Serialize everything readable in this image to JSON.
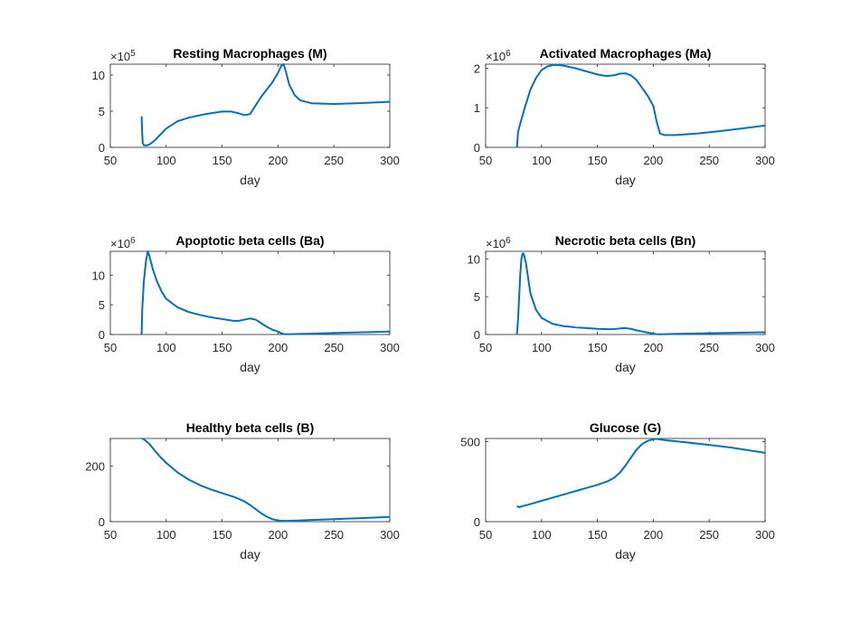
{
  "figure": {
    "background": "#ffffff",
    "line_color": "#0072BD",
    "axis_color": "#262626"
  },
  "chart_data": [
    {
      "type": "line",
      "title": "Resting Macrophages (M)",
      "xlabel": "day",
      "xlim": [
        50,
        300
      ],
      "xticks": [
        "50",
        "100",
        "150",
        "200",
        "250",
        "300"
      ],
      "ylim": [
        0,
        11.5
      ],
      "yticks": [
        "0",
        "5",
        "10"
      ],
      "multiplier": {
        "base": "×10",
        "exp": "5"
      },
      "series": [
        {
          "x": [
            78,
            78.5,
            79,
            80,
            82,
            85,
            90,
            100,
            110,
            120,
            135,
            150,
            158,
            165,
            170,
            175,
            180,
            185,
            190,
            195,
            200,
            203,
            205,
            207,
            210,
            215,
            220,
            230,
            250,
            270,
            300
          ],
          "y": [
            4.3,
            2.0,
            0.6,
            0.3,
            0.25,
            0.4,
            1.0,
            2.6,
            3.6,
            4.1,
            4.6,
            4.95,
            4.95,
            4.7,
            4.45,
            4.6,
            5.8,
            7.0,
            8.0,
            9.0,
            10.3,
            11.3,
            11.5,
            10.5,
            8.7,
            7.2,
            6.5,
            6.1,
            6.0,
            6.1,
            6.3
          ]
        }
      ]
    },
    {
      "type": "line",
      "title": "Activated Macrophages (Ma)",
      "xlabel": "day",
      "xlim": [
        50,
        300
      ],
      "xticks": [
        "50",
        "100",
        "150",
        "200",
        "250",
        "300"
      ],
      "ylim": [
        0,
        2.1
      ],
      "yticks": [
        "0",
        "1",
        "2"
      ],
      "multiplier": {
        "base": "×10",
        "exp": "6"
      },
      "series": [
        {
          "x": [
            78,
            79,
            80,
            82,
            85,
            90,
            95,
            100,
            105,
            110,
            115,
            120,
            130,
            140,
            150,
            158,
            165,
            170,
            175,
            180,
            185,
            190,
            195,
            200,
            203,
            206,
            210,
            220,
            240,
            260,
            280,
            300
          ],
          "y": [
            0.0,
            0.38,
            0.5,
            0.7,
            1.0,
            1.45,
            1.75,
            1.95,
            2.04,
            2.08,
            2.08,
            2.06,
            2.0,
            1.92,
            1.84,
            1.8,
            1.82,
            1.86,
            1.87,
            1.82,
            1.7,
            1.5,
            1.3,
            1.05,
            0.65,
            0.35,
            0.31,
            0.31,
            0.35,
            0.41,
            0.48,
            0.55
          ]
        }
      ]
    },
    {
      "type": "line",
      "title": "Apoptotic beta cells (Ba)",
      "xlabel": "day",
      "xlim": [
        50,
        300
      ],
      "xticks": [
        "50",
        "100",
        "150",
        "200",
        "250",
        "300"
      ],
      "ylim": [
        0,
        14
      ],
      "yticks": [
        "0",
        "5",
        "10"
      ],
      "multiplier": {
        "base": "×10",
        "exp": "6"
      },
      "series": [
        {
          "x": [
            78,
            78.5,
            80,
            82,
            83.5,
            85,
            88,
            92,
            96,
            100,
            110,
            120,
            130,
            140,
            150,
            160,
            165,
            170,
            175,
            180,
            185,
            190,
            195,
            200,
            203,
            206,
            210,
            230,
            260,
            300
          ],
          "y": [
            0.0,
            4.0,
            9.0,
            12.5,
            14.0,
            13.2,
            11.0,
            8.8,
            7.2,
            6.0,
            4.6,
            3.8,
            3.3,
            2.9,
            2.6,
            2.3,
            2.3,
            2.5,
            2.7,
            2.5,
            1.9,
            1.3,
            0.8,
            0.5,
            0.2,
            0.05,
            0.05,
            0.15,
            0.3,
            0.5
          ]
        }
      ]
    },
    {
      "type": "line",
      "title": "Necrotic beta cells (Bn)",
      "xlabel": "day",
      "xlim": [
        50,
        300
      ],
      "xticks": [
        "50",
        "100",
        "150",
        "200",
        "250",
        "300"
      ],
      "ylim": [
        0,
        11
      ],
      "yticks": [
        "0",
        "5",
        "10"
      ],
      "multiplier": {
        "base": "×10",
        "exp": "6"
      },
      "series": [
        {
          "x": [
            78,
            79,
            80,
            81,
            82,
            83,
            84,
            86,
            88,
            90,
            95,
            100,
            110,
            120,
            130,
            140,
            150,
            160,
            165,
            170,
            175,
            180,
            185,
            190,
            195,
            200,
            203,
            206,
            210,
            230,
            260,
            300
          ],
          "y": [
            0.0,
            2.0,
            5.0,
            8.0,
            10.0,
            10.7,
            10.7,
            9.5,
            7.5,
            5.5,
            3.3,
            2.2,
            1.4,
            1.1,
            0.95,
            0.85,
            0.75,
            0.7,
            0.72,
            0.8,
            0.85,
            0.75,
            0.55,
            0.4,
            0.25,
            0.12,
            0.05,
            0.03,
            0.05,
            0.12,
            0.2,
            0.3
          ]
        }
      ]
    },
    {
      "type": "line",
      "title": "Healthy beta cells (B)",
      "xlabel": "day",
      "xlim": [
        50,
        300
      ],
      "xticks": [
        "50",
        "100",
        "150",
        "200",
        "250",
        "300"
      ],
      "ylim": [
        0,
        300
      ],
      "yticks": [
        "0",
        "200"
      ],
      "series": [
        {
          "x": [
            78,
            80,
            85,
            90,
            95,
            100,
            110,
            120,
            130,
            140,
            150,
            160,
            165,
            170,
            175,
            180,
            185,
            190,
            195,
            200,
            205,
            210,
            230,
            250,
            270,
            300
          ],
          "y": [
            300,
            297,
            280,
            255,
            232,
            212,
            178,
            152,
            132,
            116,
            103,
            90,
            82,
            73,
            60,
            45,
            30,
            18,
            9,
            4,
            3,
            3,
            6,
            9,
            12,
            17
          ]
        }
      ]
    },
    {
      "type": "line",
      "title": "Glucose (G)",
      "xlabel": "day",
      "xlim": [
        50,
        300
      ],
      "xticks": [
        "50",
        "100",
        "150",
        "200",
        "250",
        "300"
      ],
      "ylim": [
        0,
        520
      ],
      "yticks": [
        "0",
        "500"
      ],
      "series": [
        {
          "x": [
            78,
            80,
            82,
            90,
            100,
            110,
            120,
            130,
            140,
            150,
            160,
            165,
            170,
            175,
            180,
            185,
            190,
            195,
            200,
            203,
            205,
            210,
            230,
            250,
            270,
            300
          ],
          "y": [
            98,
            90,
            95,
            110,
            130,
            150,
            170,
            190,
            210,
            230,
            255,
            275,
            305,
            350,
            400,
            450,
            485,
            505,
            515,
            518,
            515,
            510,
            495,
            480,
            463,
            430
          ]
        }
      ]
    }
  ]
}
